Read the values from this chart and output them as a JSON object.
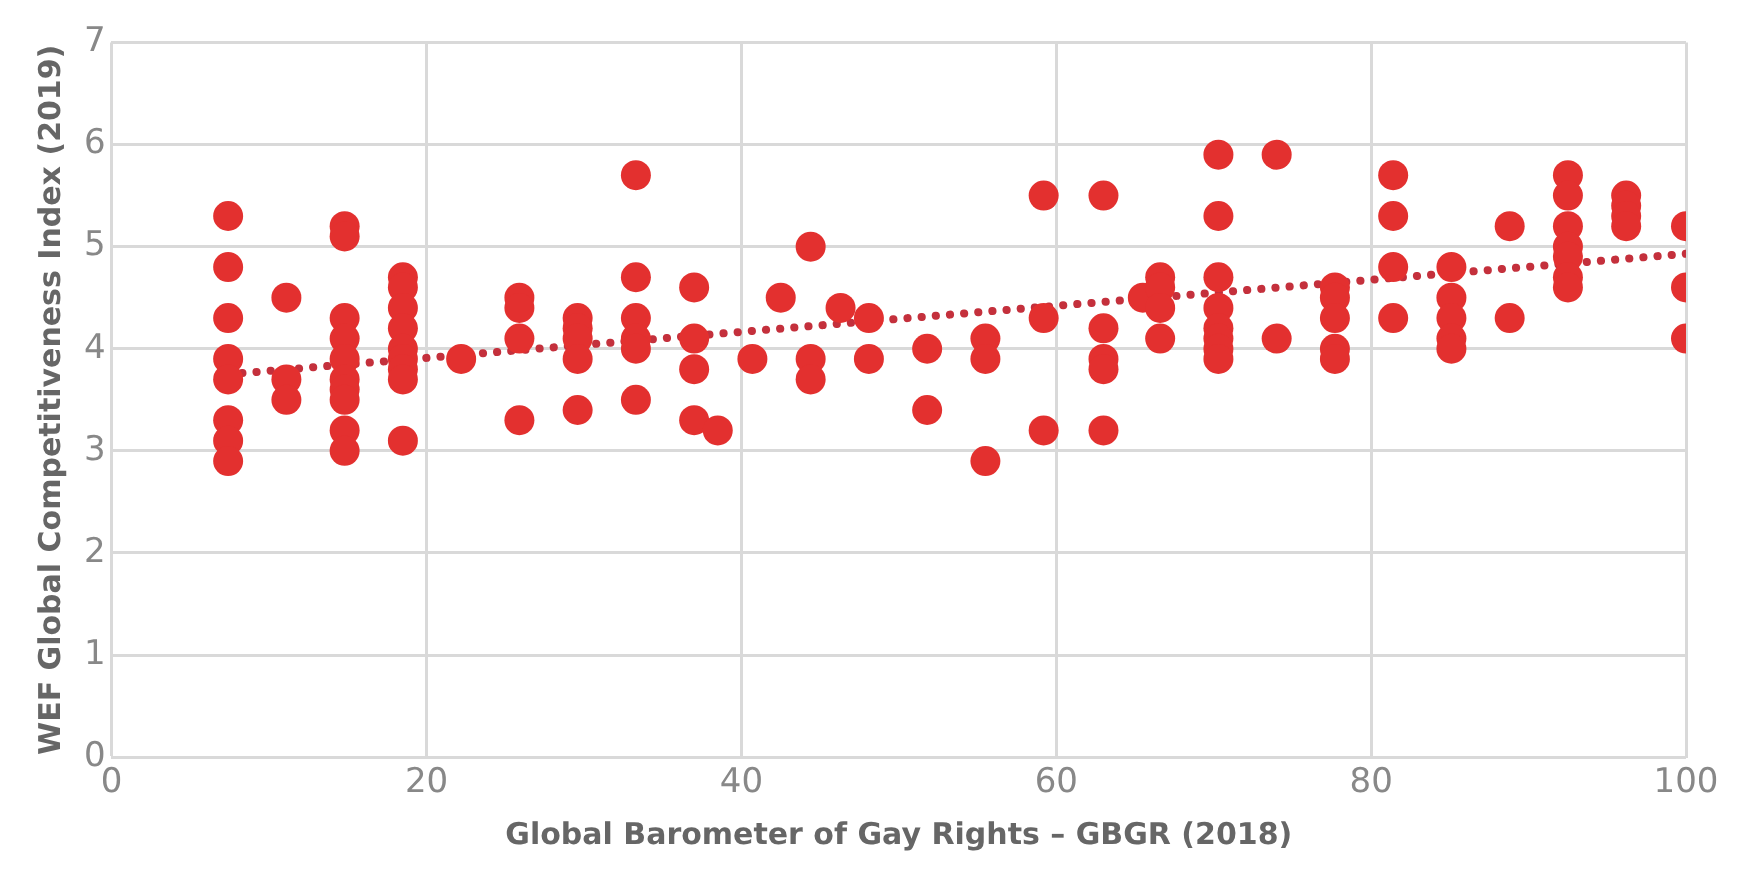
{
  "chart_data": {
    "type": "scatter",
    "xlabel": "Global Barometer of Gay Rights – GBGR (2018)",
    "ylabel": "WEF Global Competitiveness Index (2019)",
    "xlim": [
      0,
      100
    ],
    "xticks": [
      0,
      20,
      40,
      60,
      80,
      100
    ],
    "ylim": [
      0,
      7
    ],
    "yticks": [
      0,
      1,
      2,
      3,
      4,
      5,
      6,
      7
    ],
    "grid": true,
    "legend": false,
    "series": [
      {
        "color": "#e3302f",
        "marker": "circle",
        "x": [
          7.4,
          7.4,
          7.4,
          7.4,
          7.4,
          7.4,
          7.4,
          7.4,
          11.1,
          11.1,
          11.1,
          14.8,
          14.8,
          14.8,
          14.8,
          14.8,
          14.8,
          14.8,
          14.8,
          14.8,
          14.8,
          18.5,
          18.5,
          18.5,
          18.5,
          18.5,
          18.5,
          18.5,
          18.5,
          18.5,
          22.2,
          25.9,
          25.9,
          25.9,
          25.9,
          29.6,
          29.6,
          29.6,
          29.6,
          29.6,
          33.3,
          33.3,
          33.3,
          33.3,
          33.3,
          33.3,
          37,
          37,
          37,
          37,
          38.5,
          40.7,
          42.5,
          44.4,
          44.4,
          44.4,
          46.3,
          48.1,
          48.1,
          51.8,
          51.8,
          55.5,
          55.5,
          55.5,
          59.2,
          59.2,
          59.2,
          63,
          63,
          63,
          63,
          63,
          65.5,
          66.6,
          66.6,
          66.6,
          66.6,
          70.3,
          70.3,
          70.3,
          70.3,
          70.3,
          70.3,
          70.3,
          70.3,
          74,
          74,
          77.7,
          77.7,
          77.7,
          77.7,
          77.7,
          81.4,
          81.4,
          81.4,
          81.4,
          85.1,
          85.1,
          85.1,
          85.1,
          85.1,
          88.8,
          88.8,
          92.5,
          92.5,
          92.5,
          92.5,
          92.5,
          92.5,
          92.5,
          96.2,
          96.2,
          96.2,
          96.2,
          100,
          100,
          100
        ],
        "values": [
          5.3,
          4.8,
          4.3,
          3.9,
          3.7,
          3.3,
          3.1,
          2.9,
          4.5,
          3.7,
          3.5,
          5.2,
          5.1,
          4.3,
          4.1,
          3.9,
          3.7,
          3.6,
          3.5,
          3.2,
          3.0,
          4.7,
          4.6,
          4.4,
          4.2,
          4.0,
          3.9,
          3.8,
          3.7,
          3.1,
          3.9,
          4.5,
          4.4,
          4.1,
          3.3,
          4.3,
          4.2,
          4.1,
          3.9,
          3.4,
          5.7,
          4.7,
          4.3,
          4.1,
          4.0,
          3.5,
          4.6,
          4.1,
          3.8,
          3.3,
          3.2,
          3.9,
          4.5,
          5.0,
          3.9,
          3.7,
          4.4,
          4.3,
          3.9,
          4.0,
          3.4,
          4.1,
          3.9,
          2.9,
          5.5,
          4.3,
          3.2,
          5.5,
          4.2,
          3.9,
          3.8,
          3.2,
          4.5,
          4.7,
          4.6,
          4.4,
          4.1,
          5.9,
          5.3,
          4.7,
          4.4,
          4.2,
          4.1,
          4.0,
          3.9,
          5.9,
          4.1,
          4.6,
          4.5,
          4.3,
          4.0,
          3.9,
          5.7,
          5.3,
          4.8,
          4.3,
          4.8,
          4.5,
          4.3,
          4.1,
          4.0,
          5.2,
          4.3,
          5.7,
          5.5,
          5.2,
          5.0,
          4.9,
          4.7,
          4.6,
          5.5,
          5.4,
          5.3,
          5.2,
          5.2,
          4.6,
          4.1
        ]
      },
      {
        "type": "line",
        "color": "#c4303c",
        "marker": "none",
        "line_style": "dotted",
        "x": [
          7.4,
          100
        ],
        "values": [
          3.75,
          4.93
        ]
      }
    ]
  }
}
